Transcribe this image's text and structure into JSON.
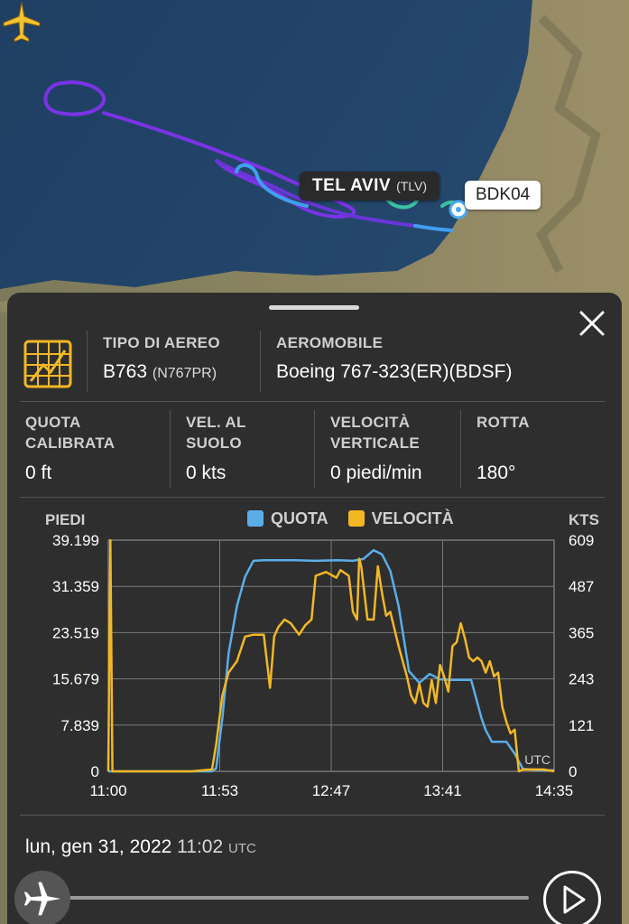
{
  "map": {
    "airport_name": "TEL AVIV",
    "airport_code": "(TLV)",
    "callsign": "BDK04",
    "colors": {
      "sea": "#24476b",
      "land": "#8f8764",
      "track_purple": "#7b33e6",
      "track_blue": "#3fa0ee",
      "track_teal": "#3cc3a4",
      "plane": "#f2c230"
    }
  },
  "panel": {
    "close_icon": "close-icon",
    "aircraft_type": {
      "label": "TIPO DI AEREO",
      "value": "B763",
      "registration": "(N767PR)"
    },
    "aircraft": {
      "label": "AEROMOBILE",
      "value": "Boeing 767-323(ER)(BDSF)"
    },
    "stats": [
      {
        "label1": "QUOTA",
        "label2": "CALIBRATA",
        "value": "0 ft"
      },
      {
        "label1": "VEL. AL",
        "label2": "SUOLO",
        "value": "0 kts"
      },
      {
        "label1": "VELOCITÀ",
        "label2": "VERTICALE",
        "value": "0 piedi/min"
      },
      {
        "label1": "ROTTA",
        "label2": "",
        "value": "180°"
      }
    ],
    "timestamp": {
      "date": "lun, gen 31, 2022",
      "time": "11:02",
      "tz": "UTC"
    }
  },
  "chart_data": {
    "type": "line",
    "left_axis_title": "PIEDI",
    "right_axis_title": "KTS",
    "legend": [
      "QUOTA",
      "VELOCITÀ"
    ],
    "left_ticks": [
      "39.199",
      "31.359",
      "23.519",
      "15.679",
      "7.839",
      "0"
    ],
    "right_ticks": [
      "609",
      "487",
      "365",
      "243",
      "121",
      "0"
    ],
    "x_ticks": [
      "11:00",
      "11:53",
      "12:47",
      "13:41",
      "14:35"
    ],
    "x_unit_label": "UTC",
    "x_range_min": [
      0,
      215
    ],
    "y_left_range": [
      0,
      39199
    ],
    "y_right_range": [
      0,
      609
    ],
    "colors": {
      "altitude": "#5aaee8",
      "speed": "#f2b824"
    },
    "series": [
      {
        "name": "QUOTA",
        "axis": "left",
        "x_min": [
          0,
          50,
          52,
          55,
          58,
          62,
          66,
          70,
          75,
          80,
          90,
          100,
          110,
          118,
          123,
          128,
          132,
          136,
          140,
          145,
          150,
          155,
          160,
          165,
          170,
          175,
          180,
          182,
          185,
          188,
          192,
          196,
          200,
          210,
          215
        ],
        "y": [
          0,
          0,
          500,
          9000,
          20000,
          28000,
          33000,
          35700,
          35800,
          35800,
          35800,
          35700,
          35800,
          35700,
          36000,
          37500,
          36800,
          34000,
          28000,
          17000,
          15000,
          16500,
          15600,
          15500,
          15500,
          15500,
          9000,
          7000,
          5000,
          5000,
          5000,
          3000,
          400,
          200,
          200
        ]
      },
      {
        "name": "VELOCITÀ",
        "axis": "right",
        "x_min": [
          0,
          1,
          2,
          40,
          50,
          52,
          55,
          58,
          62,
          66,
          70,
          75,
          78,
          80,
          82,
          85,
          88,
          92,
          95,
          98,
          100,
          105,
          110,
          112,
          116,
          118,
          120,
          121,
          122,
          125,
          128,
          130,
          132,
          134,
          136,
          140,
          144,
          146,
          148,
          150,
          152,
          154,
          156,
          158,
          160,
          162,
          164,
          166,
          168,
          170,
          172,
          174,
          176,
          178,
          180,
          182,
          184,
          186,
          188,
          190,
          192,
          194,
          196,
          198,
          200,
          205,
          210,
          215
        ],
        "y": [
          0,
          609,
          0,
          0,
          5,
          70,
          200,
          260,
          290,
          355,
          360,
          360,
          220,
          355,
          380,
          400,
          390,
          360,
          385,
          400,
          515,
          525,
          510,
          530,
          515,
          420,
          400,
          560,
          540,
          400,
          400,
          540,
          470,
          410,
          420,
          330,
          250,
          200,
          180,
          230,
          180,
          170,
          240,
          180,
          280,
          250,
          210,
          330,
          340,
          390,
          350,
          300,
          290,
          300,
          290,
          260,
          290,
          250,
          260,
          170,
          130,
          100,
          110,
          0,
          5,
          5,
          5,
          0
        ]
      }
    ]
  }
}
